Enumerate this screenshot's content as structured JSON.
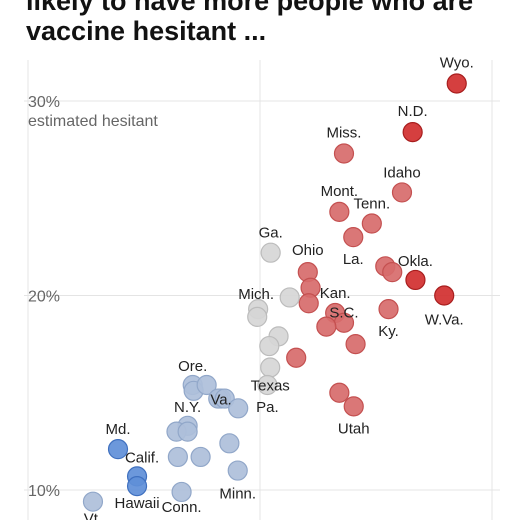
{
  "title_lines": [
    "likely to have more people who are",
    "vaccine hesitant ..."
  ],
  "colors": {
    "red_fill": "#d76b6b",
    "red_stroke": "#c45050",
    "deep_red_fill": "#d12f2f",
    "deep_red_stroke": "#a81e1e",
    "gray_fill": "#d6d6d6",
    "gray_stroke": "#bcbcbc",
    "blue_fill": "#aebfda",
    "blue_stroke": "#91a7c9",
    "deep_blue_fill": "#5f8fd8",
    "deep_blue_stroke": "#3f70bf"
  },
  "chart_data": {
    "type": "scatter",
    "xlabel": "",
    "ylabel": "estimated hesitant",
    "yticks": [
      "30%",
      "20%",
      "10%"
    ],
    "ytick_values": [
      30,
      20,
      10
    ],
    "ylim": [
      8.5,
      33.5
    ],
    "grid": true,
    "points": [
      {
        "label": "Wyo.",
        "x": 0.924,
        "y": 30.9,
        "group": "deep_red"
      },
      {
        "label": "N.D.",
        "x": 0.829,
        "y": 28.4,
        "group": "deep_red"
      },
      {
        "label": "Miss.",
        "x": 0.681,
        "y": 27.3,
        "group": "red"
      },
      {
        "label": "Idaho",
        "x": 0.806,
        "y": 25.3,
        "group": "red"
      },
      {
        "label": "Mont.",
        "x": 0.671,
        "y": 24.3,
        "group": "red"
      },
      {
        "label": "Tenn.",
        "x": 0.741,
        "y": 23.7,
        "group": "red"
      },
      {
        "label": "La.",
        "x": 0.701,
        "y": 23.0,
        "group": "red"
      },
      {
        "label": "Ga.",
        "x": 0.523,
        "y": 22.2,
        "group": "gray"
      },
      {
        "label": "Ohio",
        "x": 0.603,
        "y": 21.2,
        "group": "red"
      },
      {
        "label": "Okla.",
        "x": 0.835,
        "y": 20.8,
        "group": "deep_red"
      },
      {
        "label": "W.Va.",
        "x": 0.897,
        "y": 20.0,
        "group": "deep_red"
      },
      {
        "label": "Mich.",
        "x": 0.496,
        "y": 19.3,
        "group": "gray"
      },
      {
        "label": "Kan.",
        "x": 0.662,
        "y": 19.1,
        "group": "red"
      },
      {
        "label": "Ky.",
        "x": 0.777,
        "y": 19.3,
        "group": "red"
      },
      {
        "label": "S.C.",
        "x": 0.681,
        "y": 18.6,
        "group": "red"
      },
      {
        "label": "Texas",
        "x": 0.522,
        "y": 16.3,
        "group": "gray"
      },
      {
        "label": "Pa.",
        "x": 0.516,
        "y": 15.4,
        "group": "gray"
      },
      {
        "label": "Utah",
        "x": 0.702,
        "y": 14.3,
        "group": "red"
      },
      {
        "label": "Ore.",
        "x": 0.355,
        "y": 15.4,
        "group": "blue"
      },
      {
        "label": "Va.",
        "x": 0.416,
        "y": 14.7,
        "group": "blue"
      },
      {
        "label": "N.Y.",
        "x": 0.344,
        "y": 13.3,
        "group": "blue"
      },
      {
        "label": "Md.",
        "x": 0.194,
        "y": 12.1,
        "group": "deep_blue"
      },
      {
        "label": "Calif.",
        "x": 0.235,
        "y": 10.7,
        "group": "deep_blue"
      },
      {
        "label": "Minn.",
        "x": 0.452,
        "y": 11.0,
        "group": "blue"
      },
      {
        "label": "Hawaii",
        "x": 0.235,
        "y": 10.2,
        "group": "deep_blue"
      },
      {
        "label": "Conn.",
        "x": 0.331,
        "y": 9.9,
        "group": "blue"
      },
      {
        "label": "Vt.",
        "x": 0.14,
        "y": 9.4,
        "group": "blue"
      },
      {
        "label": "",
        "x": 0.609,
        "y": 20.4,
        "group": "red"
      },
      {
        "label": "",
        "x": 0.605,
        "y": 19.6,
        "group": "red"
      },
      {
        "label": "",
        "x": 0.77,
        "y": 21.5,
        "group": "red"
      },
      {
        "label": "",
        "x": 0.785,
        "y": 21.2,
        "group": "red"
      },
      {
        "label": "",
        "x": 0.643,
        "y": 18.4,
        "group": "red"
      },
      {
        "label": "",
        "x": 0.706,
        "y": 17.5,
        "group": "red"
      },
      {
        "label": "",
        "x": 0.578,
        "y": 16.8,
        "group": "red"
      },
      {
        "label": "",
        "x": 0.671,
        "y": 15.0,
        "group": "red"
      },
      {
        "label": "",
        "x": 0.564,
        "y": 19.9,
        "group": "gray"
      },
      {
        "label": "",
        "x": 0.494,
        "y": 18.9,
        "group": "gray"
      },
      {
        "label": "",
        "x": 0.54,
        "y": 17.9,
        "group": "gray"
      },
      {
        "label": "",
        "x": 0.52,
        "y": 17.4,
        "group": "gray"
      },
      {
        "label": "",
        "x": 0.357,
        "y": 15.1,
        "group": "blue"
      },
      {
        "label": "",
        "x": 0.385,
        "y": 15.4,
        "group": "blue"
      },
      {
        "label": "",
        "x": 0.41,
        "y": 14.7,
        "group": "blue"
      },
      {
        "label": "",
        "x": 0.424,
        "y": 14.7,
        "group": "blue"
      },
      {
        "label": "",
        "x": 0.453,
        "y": 14.2,
        "group": "blue"
      },
      {
        "label": "",
        "x": 0.32,
        "y": 13.0,
        "group": "blue"
      },
      {
        "label": "",
        "x": 0.344,
        "y": 13.0,
        "group": "blue"
      },
      {
        "label": "",
        "x": 0.434,
        "y": 12.4,
        "group": "blue"
      },
      {
        "label": "",
        "x": 0.323,
        "y": 11.7,
        "group": "blue"
      },
      {
        "label": "",
        "x": 0.372,
        "y": 11.7,
        "group": "blue"
      }
    ]
  }
}
